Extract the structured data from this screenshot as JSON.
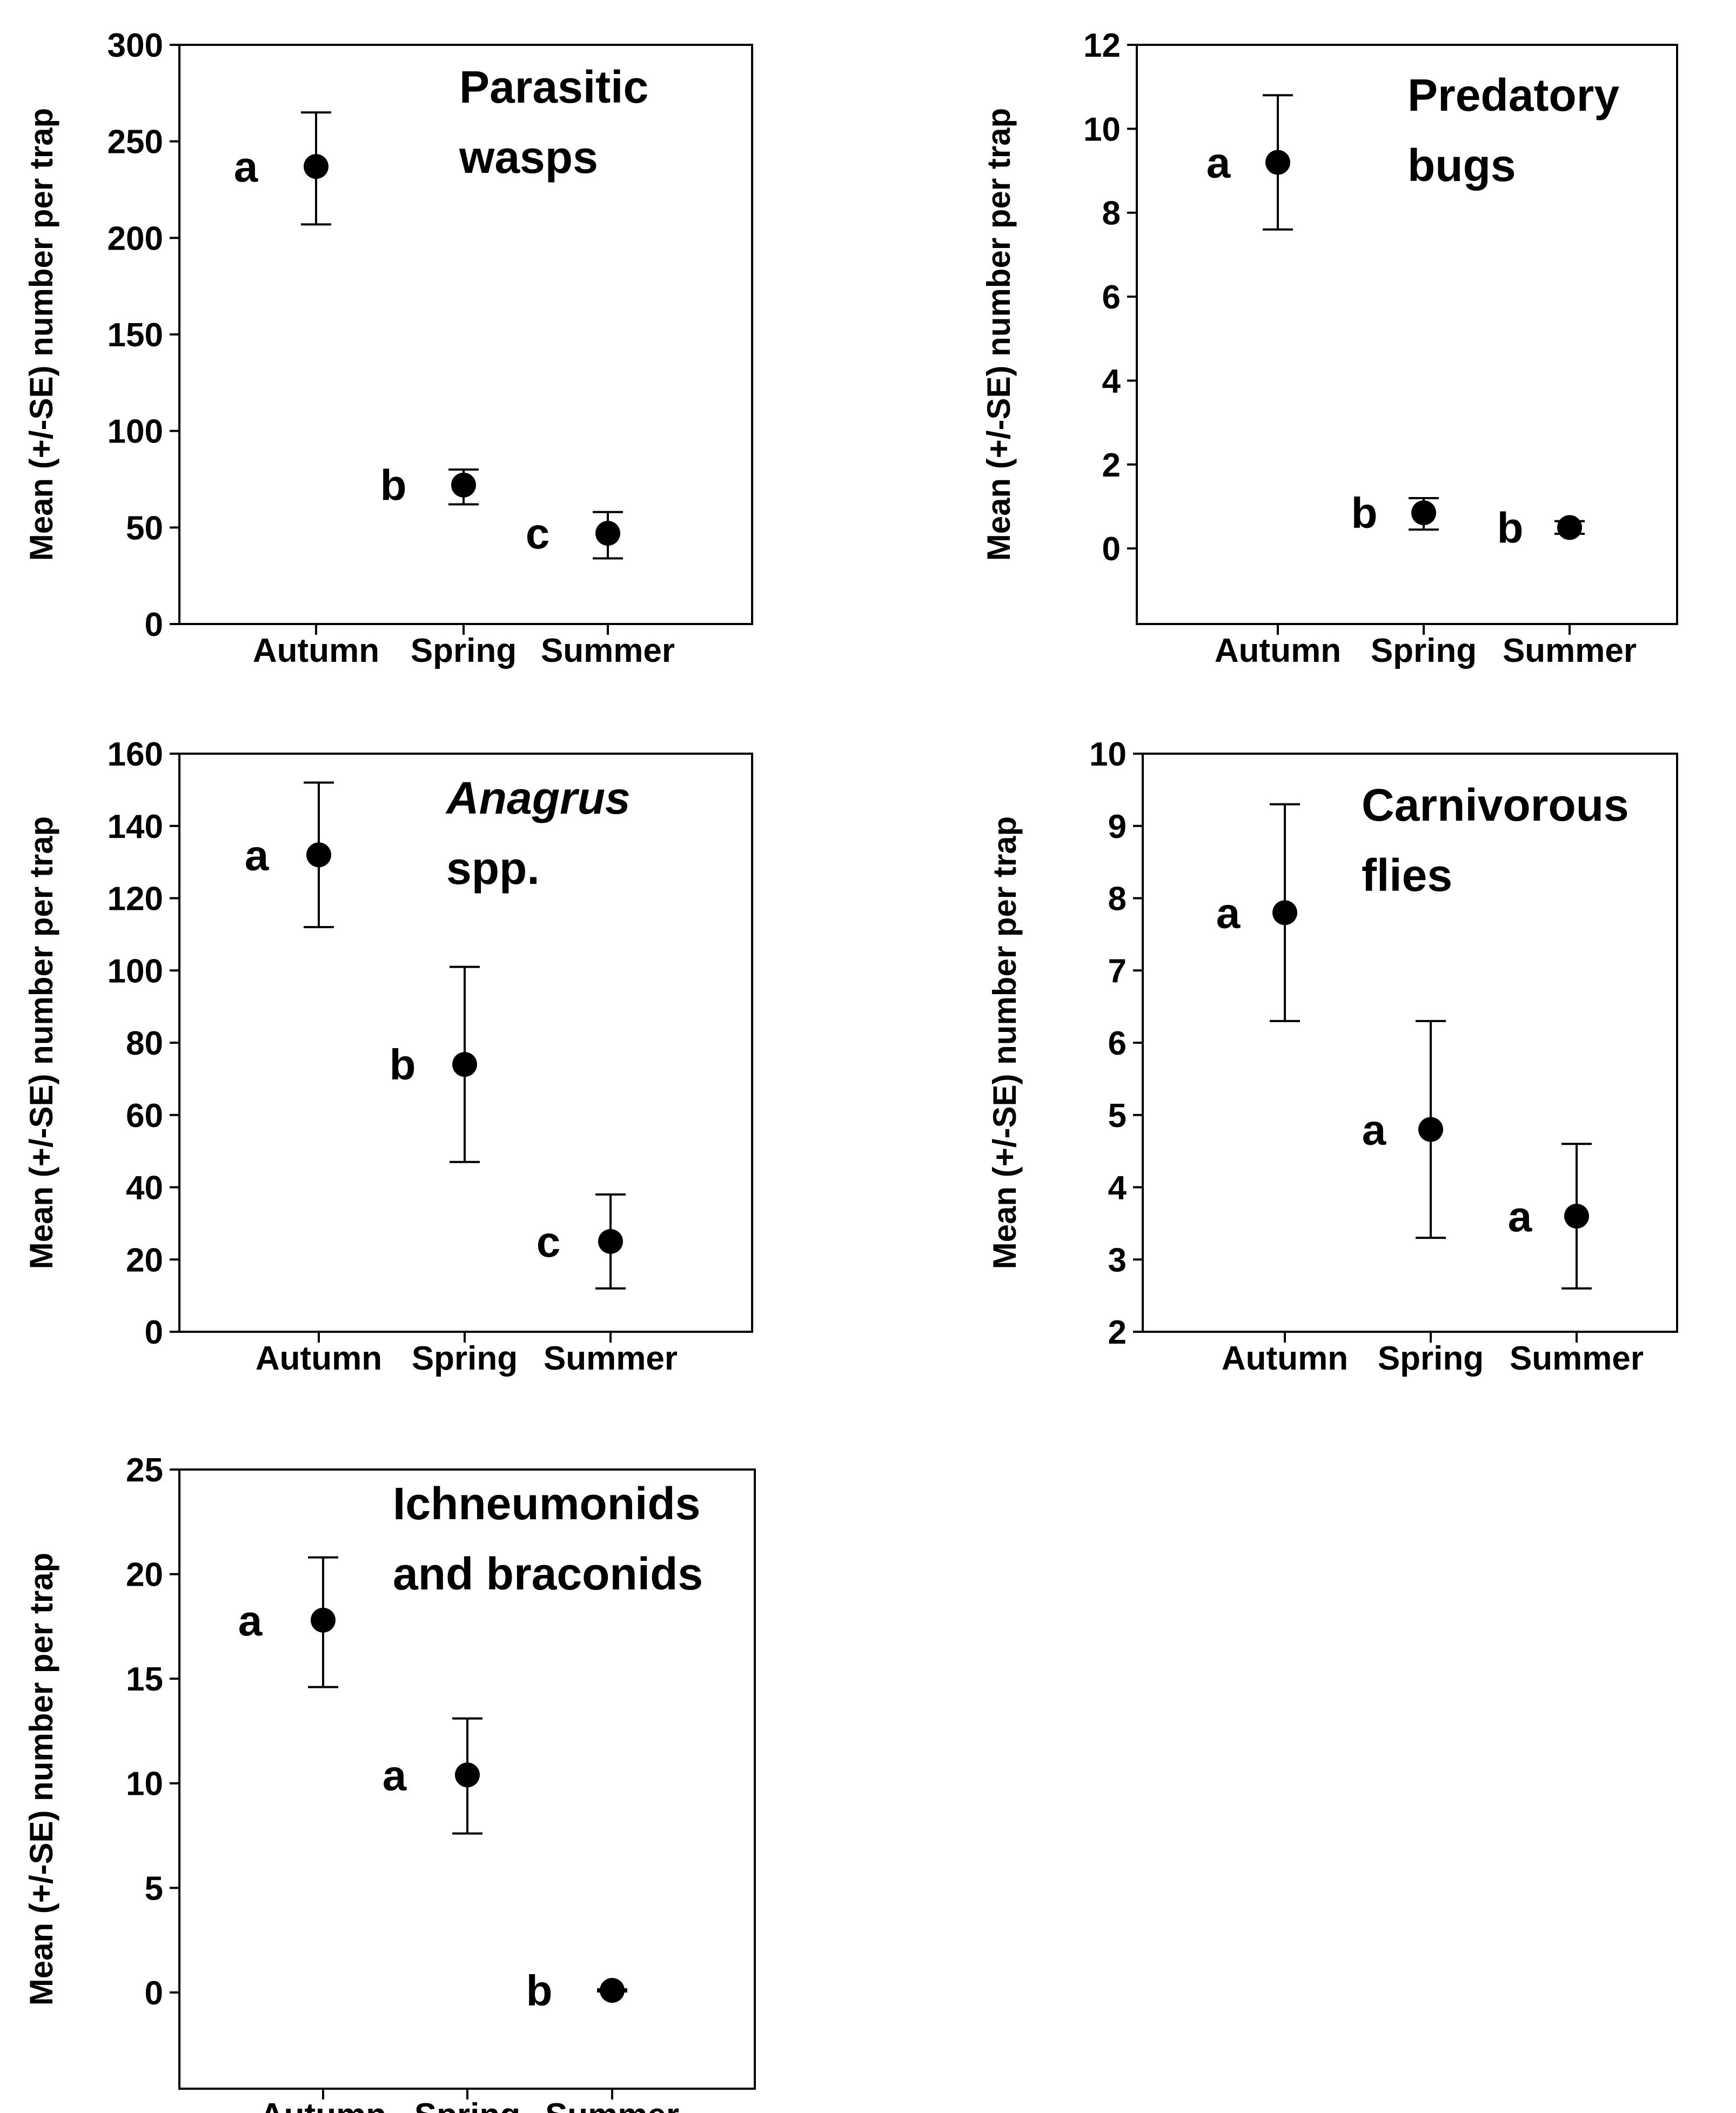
{
  "colors": {
    "ink": "#000000",
    "background": "#ffffff"
  },
  "chart_data": [
    {
      "type": "scatter",
      "title_lines": [
        "Parasitic",
        "wasps"
      ],
      "title_italic": [
        false,
        false
      ],
      "ylabel": "Mean (+/-SE) number per trap",
      "categories": [
        "Autumn",
        "Spring",
        "Summer"
      ],
      "ylim": [
        0,
        300
      ],
      "yticks": [
        0,
        50,
        100,
        150,
        200,
        250,
        300
      ],
      "ytick_labels": [
        "0",
        "50",
        "100",
        "150",
        "200",
        "250",
        "300"
      ],
      "values": [
        237,
        72,
        47
      ],
      "se_low": [
        207,
        62,
        34
      ],
      "se_high": [
        265,
        80,
        58
      ],
      "letters": [
        "a",
        "b",
        "c"
      ]
    },
    {
      "type": "scatter",
      "title_lines": [
        "Predatory",
        "bugs"
      ],
      "title_italic": [
        false,
        false
      ],
      "ylabel": "Mean (+/-SE) number per trap",
      "categories": [
        "Autumn",
        "Spring",
        "Summer"
      ],
      "ylim": [
        -1.8,
        12
      ],
      "yticks": [
        0,
        2,
        4,
        6,
        8,
        10,
        12
      ],
      "ytick_labels": [
        "0",
        "2",
        "4",
        "6",
        "8",
        "10",
        "12"
      ],
      "values": [
        9.2,
        0.85,
        0.5
      ],
      "se_low": [
        7.6,
        0.45,
        0.35
      ],
      "se_high": [
        10.8,
        1.2,
        0.65
      ],
      "letters": [
        "a",
        "b",
        "b"
      ]
    },
    {
      "type": "scatter",
      "title_lines": [
        "Anagrus",
        "spp."
      ],
      "title_italic": [
        true,
        false
      ],
      "ylabel": "Mean (+/-SE) number per trap",
      "categories": [
        "Autumn",
        "Spring",
        "Summer"
      ],
      "ylim": [
        0,
        160
      ],
      "yticks": [
        0,
        20,
        40,
        60,
        80,
        100,
        120,
        140,
        160
      ],
      "ytick_labels": [
        "0",
        "20",
        "40",
        "60",
        "80",
        "100",
        "120",
        "140",
        "160"
      ],
      "values": [
        132,
        74,
        25
      ],
      "se_low": [
        112,
        47,
        12
      ],
      "se_high": [
        152,
        101,
        38
      ],
      "letters": [
        "a",
        "b",
        "c"
      ]
    },
    {
      "type": "scatter",
      "title_lines": [
        "Carnivorous",
        "flies"
      ],
      "title_italic": [
        false,
        false
      ],
      "ylabel": "Mean (+/-SE) number per trap",
      "categories": [
        "Autumn",
        "Spring",
        "Summer"
      ],
      "ylim": [
        2,
        10
      ],
      "yticks": [
        2,
        3,
        4,
        5,
        6,
        7,
        8,
        9,
        10
      ],
      "ytick_labels": [
        "2",
        "3",
        "4",
        "5",
        "6",
        "7",
        "8",
        "9",
        "10"
      ],
      "values": [
        7.8,
        4.8,
        3.6
      ],
      "se_low": [
        6.3,
        3.3,
        2.6
      ],
      "se_high": [
        9.3,
        6.3,
        4.6
      ],
      "letters": [
        "a",
        "a",
        "a"
      ]
    },
    {
      "type": "scatter",
      "title_lines": [
        "Ichneumonids",
        "and braconids"
      ],
      "title_italic": [
        false,
        false
      ],
      "ylabel": "Mean (+/-SE) number per trap",
      "categories": [
        "Autumn",
        "Spring",
        "Summer"
      ],
      "ylim": [
        -4.6,
        25
      ],
      "yticks": [
        0,
        5,
        10,
        15,
        20,
        25
      ],
      "ytick_labels": [
        "0",
        "5",
        "10",
        "15",
        "20",
        "25"
      ],
      "values": [
        17.8,
        10.4,
        0.1
      ],
      "se_low": [
        14.6,
        7.6,
        0.05
      ],
      "se_high": [
        20.8,
        13.1,
        0.15
      ],
      "letters": [
        "a",
        "a",
        "b"
      ]
    }
  ]
}
